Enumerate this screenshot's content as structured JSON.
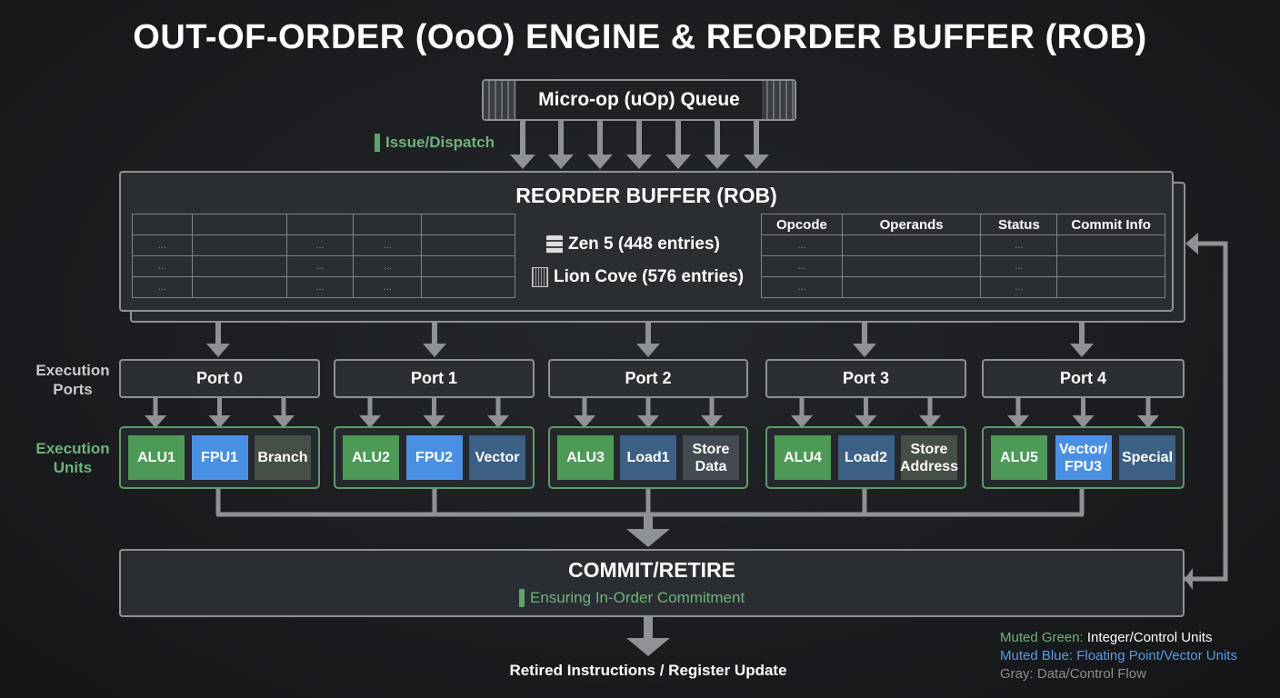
{
  "title": "OUT-OF-ORDER (OoO) ENGINE & REORDER BUFFER (ROB)",
  "queue": {
    "label": "Micro-op (uOp) Queue"
  },
  "issue_label": "Issue/Dispatch",
  "rob": {
    "title": "REORDER BUFFER (ROB)",
    "left_table": {
      "rows": [
        [
          "",
          "",
          "",
          "",
          ""
        ],
        [
          "...",
          "",
          "...",
          "...",
          ""
        ],
        [
          "...",
          "",
          "...",
          "...",
          ""
        ],
        [
          "...",
          "",
          "...",
          "...",
          ""
        ]
      ]
    },
    "zen": {
      "icon": "server-icon",
      "label": "Zen 5 (448 entries)"
    },
    "lion": {
      "icon": "grid-chip-icon",
      "label": "Lion Cove (576 entries)"
    },
    "right_table": {
      "headers": [
        "Opcode",
        "Operands",
        "Status",
        "Commit Info"
      ],
      "rows": [
        [
          "...",
          "",
          "...",
          ""
        ],
        [
          "...",
          "",
          "...",
          ""
        ],
        [
          "...",
          "",
          "...",
          ""
        ]
      ]
    }
  },
  "labels": {
    "ports": "Execution Ports",
    "units": "Execution Units"
  },
  "ports": [
    {
      "label": "Port 0",
      "units": [
        {
          "label": "ALU1",
          "kind": "green"
        },
        {
          "label": "FPU1",
          "kind": "blue"
        },
        {
          "label": "Branch",
          "kind": "olive"
        }
      ]
    },
    {
      "label": "Port 1",
      "units": [
        {
          "label": "ALU2",
          "kind": "green"
        },
        {
          "label": "FPU2",
          "kind": "blue"
        },
        {
          "label": "Vector",
          "kind": "slate"
        }
      ]
    },
    {
      "label": "Port 2",
      "units": [
        {
          "label": "ALU3",
          "kind": "green"
        },
        {
          "label": "Load1",
          "kind": "slate"
        },
        {
          "label": "Store Data",
          "kind": "grey"
        }
      ]
    },
    {
      "label": "Port 3",
      "units": [
        {
          "label": "ALU4",
          "kind": "green"
        },
        {
          "label": "Load2",
          "kind": "slate"
        },
        {
          "label": "Store Address",
          "kind": "olive"
        }
      ]
    },
    {
      "label": "Port 4",
      "units": [
        {
          "label": "ALU5",
          "kind": "green"
        },
        {
          "label": "Vector/ FPU3",
          "kind": "blue"
        },
        {
          "label": "Special",
          "kind": "slate"
        }
      ]
    }
  ],
  "commit": {
    "title": "COMMIT/RETIRE",
    "subtitle": "Ensuring In-Order Commitment"
  },
  "retired_label": "Retired Instructions / Register Update",
  "legend": [
    {
      "key": "Muted Green:",
      "text": "Integer/Control Units",
      "color": "#6fb37a"
    },
    {
      "key": "Muted Blue:",
      "text": "Floating Point/Vector Units",
      "color": "#5b9be0"
    },
    {
      "key": "Gray:",
      "text": "Data/Control Flow",
      "color": "#8a8d91"
    }
  ],
  "colors": {
    "green": "#4d9a57",
    "blue": "#4a90e2",
    "slate": "#3c5f84",
    "arrow": "#8e9297"
  }
}
